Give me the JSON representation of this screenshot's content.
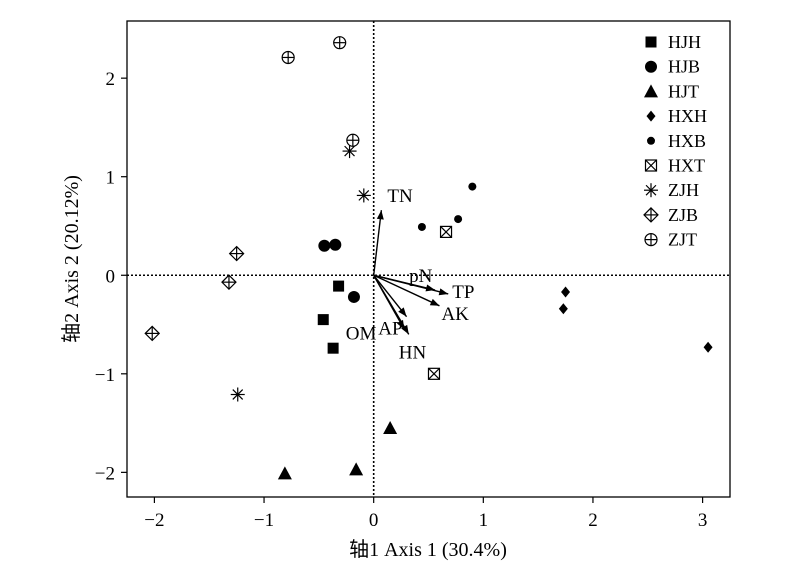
{
  "chart_data": {
    "type": "scatter",
    "title": "",
    "xlabel": "轴1 Axis 1 (30.4%)",
    "ylabel": "轴2 Axis 2 (20.12%)",
    "xlim": [
      -2.25,
      3.25
    ],
    "ylim": [
      -2.25,
      2.58
    ],
    "xticks": [
      -2,
      -1,
      0,
      1,
      2,
      3
    ],
    "yticks": [
      -2,
      -1,
      0,
      1,
      2
    ],
    "grid": false,
    "reference_lines": {
      "x": 0,
      "y": 0,
      "style": "dotted"
    },
    "legend_position": "top-right",
    "series": [
      {
        "name": "HJH",
        "marker": "square",
        "points": [
          [
            -0.32,
            -0.11
          ],
          [
            -0.46,
            -0.45
          ],
          [
            -0.37,
            -0.74
          ]
        ]
      },
      {
        "name": "HJB",
        "marker": "circle",
        "points": [
          [
            -0.45,
            0.3
          ],
          [
            -0.35,
            0.31
          ],
          [
            -0.18,
            -0.22
          ]
        ]
      },
      {
        "name": "HJT",
        "marker": "triangle",
        "points": [
          [
            0.15,
            -1.55
          ],
          [
            -0.16,
            -1.97
          ],
          [
            -0.81,
            -2.01
          ]
        ]
      },
      {
        "name": "HXH",
        "marker": "diamond",
        "points": [
          [
            1.75,
            -0.17
          ],
          [
            1.73,
            -0.34
          ],
          [
            3.05,
            -0.73
          ]
        ]
      },
      {
        "name": "HXB",
        "marker": "small-circle",
        "points": [
          [
            0.44,
            0.49
          ],
          [
            0.77,
            0.57
          ],
          [
            0.9,
            0.9
          ]
        ]
      },
      {
        "name": "HXT",
        "marker": "boxed-x",
        "points": [
          [
            0.66,
            0.44
          ],
          [
            0.55,
            -1.0
          ]
        ]
      },
      {
        "name": "ZJH",
        "marker": "asterisk",
        "points": [
          [
            -0.22,
            1.26
          ],
          [
            -0.09,
            0.81
          ],
          [
            -1.24,
            -1.21
          ]
        ]
      },
      {
        "name": "ZJB",
        "marker": "diamond-plus",
        "points": [
          [
            -1.25,
            0.22
          ],
          [
            -1.32,
            -0.07
          ],
          [
            -2.02,
            -0.59
          ]
        ]
      },
      {
        "name": "ZJT",
        "marker": "circle-plus",
        "points": [
          [
            -0.31,
            2.36
          ],
          [
            -0.78,
            2.21
          ],
          [
            -0.19,
            1.37
          ]
        ]
      }
    ],
    "vectors": [
      {
        "name": "TN",
        "x": 0.07,
        "y": 0.66
      },
      {
        "name": "pN",
        "x": 0.56,
        "y": -0.15
      },
      {
        "name": "TP",
        "x": 0.68,
        "y": -0.19
      },
      {
        "name": "AK",
        "x": 0.6,
        "y": -0.31
      },
      {
        "name": "AP",
        "x": 0.3,
        "y": -0.42
      },
      {
        "name": "HN",
        "x": 0.32,
        "y": -0.6
      },
      {
        "name": "OM",
        "x": 0.28,
        "y": -0.55
      }
    ]
  }
}
